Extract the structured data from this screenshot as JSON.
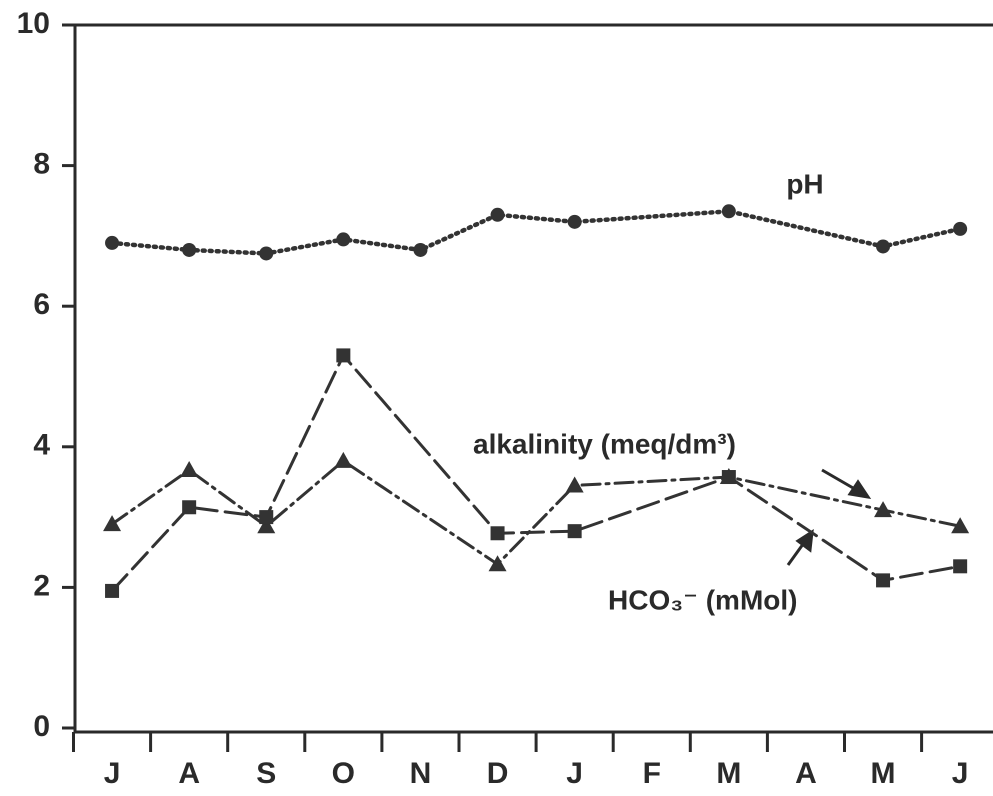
{
  "chart_data": {
    "type": "line",
    "xlim": [
      -0.5,
      11.5
    ],
    "xticks": [
      {
        "value": 0,
        "label": "J"
      },
      {
        "value": 1,
        "label": "A"
      },
      {
        "value": 2,
        "label": "S"
      },
      {
        "value": 3,
        "label": "O"
      },
      {
        "value": 4,
        "label": "N"
      },
      {
        "value": 5,
        "label": "D"
      },
      {
        "value": 6,
        "label": "J"
      },
      {
        "value": 7,
        "label": "F"
      },
      {
        "value": 8,
        "label": "M"
      },
      {
        "value": 9,
        "label": "A"
      },
      {
        "value": 10,
        "label": "M"
      },
      {
        "value": 11,
        "label": "J"
      }
    ],
    "ylim": [
      0,
      10
    ],
    "yticks": [
      0,
      2,
      4,
      6,
      8,
      10
    ],
    "series": [
      {
        "name": "pH",
        "color": "#333333",
        "marker": "circle",
        "line_style": "dotted",
        "x": [
          0,
          1,
          2,
          3,
          4,
          5,
          6,
          8,
          10,
          11
        ],
        "values": [
          6.9,
          6.8,
          6.75,
          6.95,
          6.8,
          7.3,
          7.2,
          7.35,
          6.85,
          7.1
        ]
      },
      {
        "name": "alkalinity (meq/dm³)",
        "color": "#333333",
        "marker": "triangle",
        "line_style": "dashdot",
        "x": [
          0,
          1,
          2,
          3,
          5,
          6,
          8,
          10,
          11
        ],
        "values": [
          2.9,
          3.67,
          2.87,
          3.8,
          2.33,
          3.45,
          3.57,
          3.1,
          2.87
        ]
      },
      {
        "name": "HCO₃⁻ (mMol)",
        "color": "#333333",
        "marker": "square",
        "line_style": "dashed",
        "x": [
          0,
          1,
          2,
          3,
          5,
          6,
          8,
          10,
          11
        ],
        "values": [
          1.95,
          3.14,
          3.0,
          5.3,
          2.77,
          2.8,
          3.57,
          2.1,
          2.3
        ]
      }
    ]
  }
}
